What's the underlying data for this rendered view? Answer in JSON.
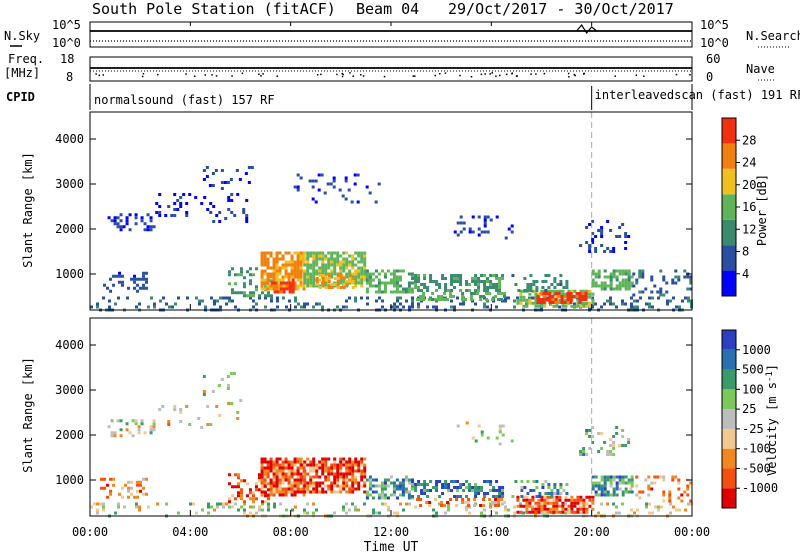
{
  "header": {
    "station": "South Pole Station (fitACF)",
    "beam": "Beam 04",
    "dates": "29/Oct/2017 - 30/Oct/2017"
  },
  "noise_panel": {
    "left_label": "N.Sky",
    "left_ticks": [
      "10^5",
      "10^0"
    ],
    "right_label": "N.Search",
    "right_ticks": [
      "10^5",
      "10^0"
    ]
  },
  "freq_panel": {
    "left_label_1": "Freq.",
    "left_label_2": "[MHz]",
    "left_ticks": [
      "18",
      "8"
    ],
    "right_label": "Nave",
    "right_ticks": [
      "60",
      "0"
    ]
  },
  "cpid_panel": {
    "label": "CPID",
    "modes": [
      {
        "name": "normalsound (fast) 157 RF",
        "start_hour": 0,
        "end_hour": 20
      },
      {
        "name": "interleavedscan (fast) 191 RF",
        "start_hour": 20,
        "end_hour": 24
      }
    ]
  },
  "time_axis": {
    "xlabel": "Time UT",
    "ticks": [
      "00:00",
      "04:00",
      "08:00",
      "12:00",
      "16:00",
      "20:00",
      "00:00"
    ]
  },
  "colors": {
    "power": [
      "#0000ff",
      "#2a4fa0",
      "#3a8a6e",
      "#5fb45a",
      "#f0c020",
      "#f08010",
      "#f03010"
    ],
    "velocity": [
      "#e00000",
      "#f45010",
      "#f08820",
      "#f0c890",
      "#bdbdbd",
      "#7dc85a",
      "#3a9a6a",
      "#2a70b0",
      "#2a40c0"
    ]
  },
  "chart_data": [
    {
      "type": "heatmap",
      "name": "Power",
      "ylabel": "Slant Range [km]",
      "yticks": [
        "1000",
        "2000",
        "3000",
        "4000"
      ],
      "ylim": [
        200,
        4600
      ],
      "xlim": [
        0,
        24
      ],
      "colorbar": {
        "label": "Power [dB]",
        "ticks": [
          "4",
          "8",
          "12",
          "16",
          "20",
          "24",
          "28"
        ],
        "range": [
          0,
          30
        ]
      },
      "regions": [
        {
          "t0": 0.0,
          "t1": 24.0,
          "r0": 220,
          "r1": 500,
          "value": 8,
          "density": 0.25
        },
        {
          "t0": 0.4,
          "t1": 2.2,
          "r0": 600,
          "r1": 1050,
          "value": 6,
          "density": 0.35
        },
        {
          "t0": 0.7,
          "t1": 2.6,
          "r0": 2000,
          "r1": 2350,
          "value": 4,
          "density": 0.3
        },
        {
          "t0": 2.6,
          "t1": 6.2,
          "r0": 2150,
          "r1": 2800,
          "value": 4,
          "density": 0.15
        },
        {
          "t0": 4.5,
          "t1": 6.5,
          "r0": 2900,
          "r1": 3400,
          "value": 5,
          "density": 0.12
        },
        {
          "t0": 5.5,
          "t1": 7.2,
          "r0": 500,
          "r1": 1150,
          "value": 12,
          "density": 0.35
        },
        {
          "t0": 6.8,
          "t1": 8.5,
          "r0": 650,
          "r1": 1500,
          "value": 22,
          "density": 0.8
        },
        {
          "t0": 7.2,
          "t1": 8.1,
          "r0": 600,
          "r1": 900,
          "value": 27,
          "density": 0.7
        },
        {
          "t0": 8.5,
          "t1": 11.0,
          "r0": 700,
          "r1": 1500,
          "value": 16,
          "density": 0.75
        },
        {
          "t0": 9.0,
          "t1": 10.5,
          "r0": 700,
          "r1": 1000,
          "value": 22,
          "density": 0.6
        },
        {
          "t0": 8.0,
          "t1": 11.5,
          "r0": 2600,
          "r1": 3300,
          "value": 5,
          "density": 0.12
        },
        {
          "t0": 11.0,
          "t1": 12.8,
          "r0": 600,
          "r1": 1100,
          "value": 14,
          "density": 0.5
        },
        {
          "t0": 12.8,
          "t1": 16.5,
          "r0": 600,
          "r1": 1000,
          "value": 12,
          "density": 0.55
        },
        {
          "t0": 13.0,
          "t1": 16.5,
          "r0": 400,
          "r1": 600,
          "value": 14,
          "density": 0.4
        },
        {
          "t0": 17.0,
          "t1": 20.0,
          "r0": 300,
          "r1": 650,
          "value": 16,
          "density": 0.7
        },
        {
          "t0": 17.8,
          "t1": 19.8,
          "r0": 380,
          "r1": 600,
          "value": 27,
          "density": 0.75
        },
        {
          "t0": 16.8,
          "t1": 19.0,
          "r0": 650,
          "r1": 1000,
          "value": 10,
          "density": 0.3
        },
        {
          "t0": 20.0,
          "t1": 21.6,
          "r0": 650,
          "r1": 1100,
          "value": 14,
          "density": 0.7
        },
        {
          "t0": 21.5,
          "t1": 24.0,
          "r0": 550,
          "r1": 1100,
          "value": 8,
          "density": 0.2
        },
        {
          "t0": 19.5,
          "t1": 21.5,
          "r0": 1500,
          "r1": 2200,
          "value": 5,
          "density": 0.2
        },
        {
          "t0": 14.5,
          "t1": 17.0,
          "r0": 1800,
          "r1": 2300,
          "value": 5,
          "density": 0.12
        }
      ]
    },
    {
      "type": "heatmap",
      "name": "Velocity",
      "ylabel": "Slant Range [km]",
      "yticks": [
        "1000",
        "2000",
        "3000",
        "4000"
      ],
      "ylim": [
        200,
        4600
      ],
      "xlim": [
        0,
        24
      ],
      "colorbar": {
        "label": "Velocity [m s^-1]",
        "ticks": [
          "-1000",
          "-500",
          "-100",
          "-25",
          "25",
          "100",
          "500",
          "1000"
        ]
      },
      "regions": [
        {
          "t0": 0.0,
          "t1": 24.0,
          "r0": 220,
          "r1": 500,
          "value": 4,
          "density": 0.2
        },
        {
          "t0": 0.4,
          "t1": 2.2,
          "r0": 600,
          "r1": 1050,
          "value": 2,
          "density": 0.3
        },
        {
          "t0": 0.7,
          "t1": 2.6,
          "r0": 2000,
          "r1": 2350,
          "value": 4,
          "density": 0.3
        },
        {
          "t0": 2.6,
          "t1": 6.2,
          "r0": 2150,
          "r1": 2800,
          "value": 3,
          "density": 0.12
        },
        {
          "t0": 4.5,
          "t1": 6.5,
          "r0": 2900,
          "r1": 3400,
          "value": 4,
          "density": 0.1
        },
        {
          "t0": 5.5,
          "t1": 7.2,
          "r0": 500,
          "r1": 1150,
          "value": 1,
          "density": 0.35
        },
        {
          "t0": 6.8,
          "t1": 8.5,
          "r0": 650,
          "r1": 1500,
          "value": 1,
          "density": 0.8
        },
        {
          "t0": 8.5,
          "t1": 11.0,
          "r0": 700,
          "r1": 1500,
          "value": 1,
          "density": 0.75
        },
        {
          "t0": 11.0,
          "t1": 12.8,
          "r0": 600,
          "r1": 1100,
          "value": 6,
          "density": 0.5
        },
        {
          "t0": 12.8,
          "t1": 16.5,
          "r0": 600,
          "r1": 1000,
          "value": 7,
          "density": 0.55
        },
        {
          "t0": 13.0,
          "t1": 16.5,
          "r0": 400,
          "r1": 600,
          "value": 2,
          "density": 0.35
        },
        {
          "t0": 17.0,
          "t1": 20.0,
          "r0": 300,
          "r1": 650,
          "value": 1,
          "density": 0.75
        },
        {
          "t0": 16.8,
          "t1": 19.0,
          "r0": 650,
          "r1": 1000,
          "value": 6,
          "density": 0.3
        },
        {
          "t0": 20.0,
          "t1": 21.6,
          "r0": 650,
          "r1": 1100,
          "value": 6,
          "density": 0.7
        },
        {
          "t0": 21.5,
          "t1": 24.0,
          "r0": 550,
          "r1": 1100,
          "value": 2,
          "density": 0.2
        },
        {
          "t0": 19.5,
          "t1": 21.5,
          "r0": 1500,
          "r1": 2200,
          "value": 5,
          "density": 0.2
        },
        {
          "t0": 14.5,
          "t1": 17.0,
          "r0": 1800,
          "r1": 2300,
          "value": 4,
          "density": 0.1
        }
      ]
    }
  ]
}
